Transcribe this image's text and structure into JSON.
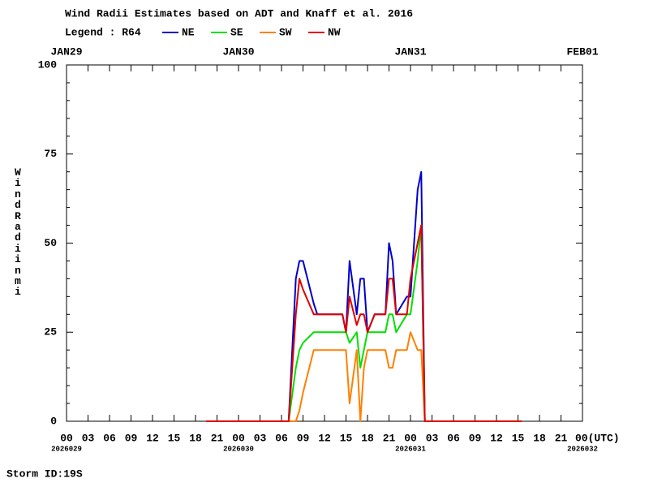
{
  "chart_data": {
    "type": "line",
    "title": "Wind Radii Estimates based on ADT and Knaff et al. 2016",
    "legend_title": "Legend : R64",
    "y_label": "Wind Radii nmi",
    "footer": "Storm ID:19S",
    "x": [
      19.5,
      31,
      32,
      32.5,
      33,
      34.5,
      35,
      38.5,
      39,
      39.5,
      40.5,
      41,
      41.5,
      42,
      43,
      44.5,
      45,
      45.5,
      46,
      47.5,
      48,
      49,
      49.5,
      50,
      63.5
    ],
    "series": [
      {
        "name": "NE",
        "color": "#0000cc",
        "values": [
          0,
          0,
          40,
          45,
          45,
          33,
          30,
          30,
          25,
          45,
          30,
          40,
          40,
          25,
          30,
          30,
          50,
          45,
          30,
          35,
          35,
          65,
          70,
          0,
          0
        ]
      },
      {
        "name": "SE",
        "color": "#00e000",
        "values": [
          0,
          0,
          15,
          20,
          22,
          25,
          25,
          25,
          25,
          22,
          25,
          15,
          20,
          25,
          25,
          25,
          30,
          30,
          25,
          30,
          30,
          45,
          55,
          0,
          0
        ]
      },
      {
        "name": "SW",
        "color": "#ff8000",
        "values": [
          0,
          0,
          0,
          3,
          8,
          20,
          20,
          20,
          20,
          5,
          20,
          0,
          15,
          20,
          20,
          20,
          15,
          15,
          20,
          20,
          25,
          20,
          20,
          0,
          0
        ]
      },
      {
        "name": "NW",
        "color": "#e00000",
        "values": [
          0,
          0,
          30,
          40,
          37,
          30,
          30,
          30,
          25,
          35,
          27,
          30,
          30,
          25,
          30,
          30,
          40,
          40,
          30,
          30,
          40,
          50,
          55,
          0,
          0
        ]
      }
    ],
    "xlim": [
      0,
      72
    ],
    "xticks": [
      {
        "value": 0,
        "label": "00"
      },
      {
        "value": 3,
        "label": "03"
      },
      {
        "value": 6,
        "label": "06"
      },
      {
        "value": 9,
        "label": "09"
      },
      12,
      15,
      18,
      21,
      {
        "value": 24,
        "label": "00"
      },
      {
        "value": 27,
        "label": "03"
      },
      {
        "value": 30,
        "label": "06"
      },
      {
        "value": 33,
        "label": "09"
      },
      {
        "value": 36,
        "label": "12"
      },
      {
        "value": 39,
        "label": "15"
      },
      {
        "value": 42,
        "label": "18"
      },
      {
        "value": 45,
        "label": "21"
      },
      {
        "value": 48,
        "label": "00"
      },
      {
        "value": 51,
        "label": "03"
      },
      {
        "value": 54,
        "label": "06"
      },
      {
        "value": 57,
        "label": "09"
      },
      {
        "value": 60,
        "label": "12"
      },
      {
        "value": 63,
        "label": "15"
      },
      {
        "value": 66,
        "label": "18"
      },
      {
        "value": 69,
        "label": "21"
      },
      {
        "value": 72,
        "label": "00(UTC)"
      }
    ],
    "date_labels": [
      {
        "value": 0,
        "label": "JAN29"
      },
      {
        "value": 24,
        "label": "JAN30"
      },
      {
        "value": 48,
        "label": "JAN31"
      },
      {
        "value": 72,
        "label": "FEB01"
      }
    ],
    "date_codes": [
      {
        "value": 0,
        "label": "2026029"
      },
      {
        "value": 24,
        "label": "2026030"
      },
      {
        "value": 48,
        "label": "2026031"
      },
      {
        "value": 72,
        "label": "2026032"
      }
    ],
    "ylim": [
      0,
      100
    ],
    "yticks": [
      0,
      25,
      50,
      75,
      100
    ]
  }
}
